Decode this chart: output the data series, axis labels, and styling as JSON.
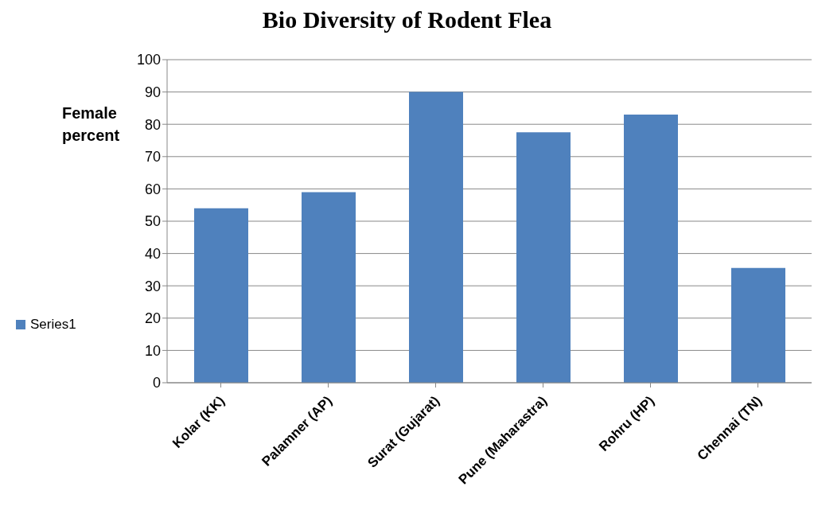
{
  "chart_data": {
    "type": "bar",
    "title": "Bio Diversity of Rodent Flea",
    "ylabel": "Female percent",
    "categories": [
      "Kolar (KK)",
      "Palamner (AP)",
      "Surat (Gujarat)",
      "Pune (Maharastra)",
      "Rohru (HP)",
      "Chennai (TN)"
    ],
    "series": [
      {
        "name": "Series1",
        "color": "#4f81bd",
        "values": [
          54,
          59,
          90,
          77.5,
          83,
          35.5
        ]
      }
    ],
    "ylim": [
      0,
      100
    ],
    "yticks": [
      0,
      10,
      20,
      30,
      40,
      50,
      60,
      70,
      80,
      90,
      100
    ],
    "grid": "y",
    "legend": "left"
  }
}
